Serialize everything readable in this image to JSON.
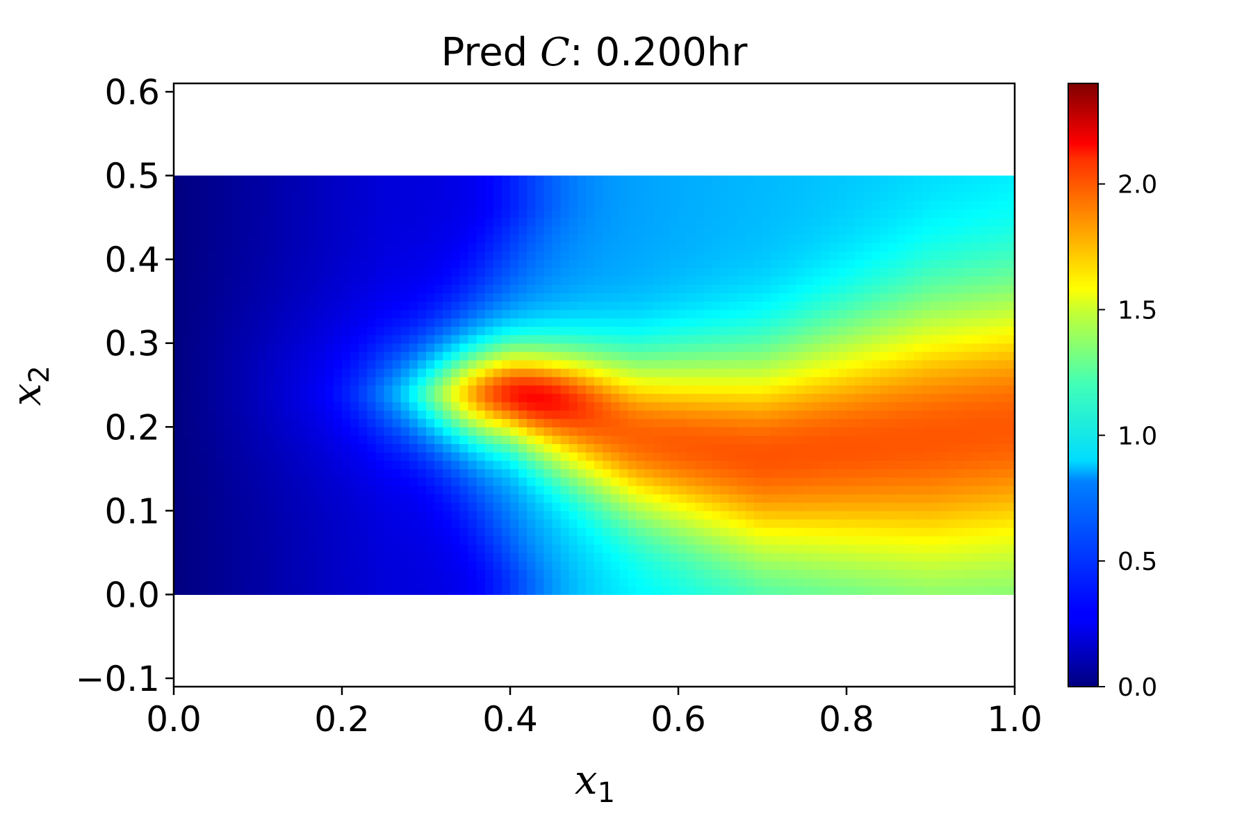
{
  "chart_data": {
    "type": "heatmap",
    "title": {
      "prefix": "Pred ",
      "variable": "C",
      "suffix": ":  0.200hr"
    },
    "xlabel": {
      "symbol": "x",
      "subscript": "1"
    },
    "ylabel": {
      "symbol": "x",
      "subscript": "2"
    },
    "xlim": [
      0.0,
      1.0
    ],
    "ylim": [
      -0.11,
      0.61
    ],
    "x_ticks": [
      "0.0",
      "0.2",
      "0.4",
      "0.6",
      "0.8",
      "1.0"
    ],
    "y_ticks": [
      "−0.1",
      "0.0",
      "0.1",
      "0.2",
      "0.3",
      "0.4",
      "0.5",
      "0.6"
    ],
    "data_extent": {
      "x": [
        0.0,
        1.0
      ],
      "y": [
        0.0,
        0.5
      ]
    },
    "colormap": "jet",
    "colorbar": {
      "range": [
        0.0,
        2.4
      ],
      "ticks": [
        "0.0",
        "0.5",
        "1.0",
        "1.5",
        "2.0"
      ]
    },
    "features": {
      "peak": {
        "x": 0.42,
        "y": 0.24,
        "value": 2.4
      },
      "plume_ridge_y": [
        0.24,
        0.19,
        0.17,
        0.19,
        0.21
      ],
      "right_edge_top_value": 0.8,
      "right_edge_bottom_value": 1.45,
      "left_edge_value": 0.0
    },
    "grid": false,
    "legend": "none"
  }
}
